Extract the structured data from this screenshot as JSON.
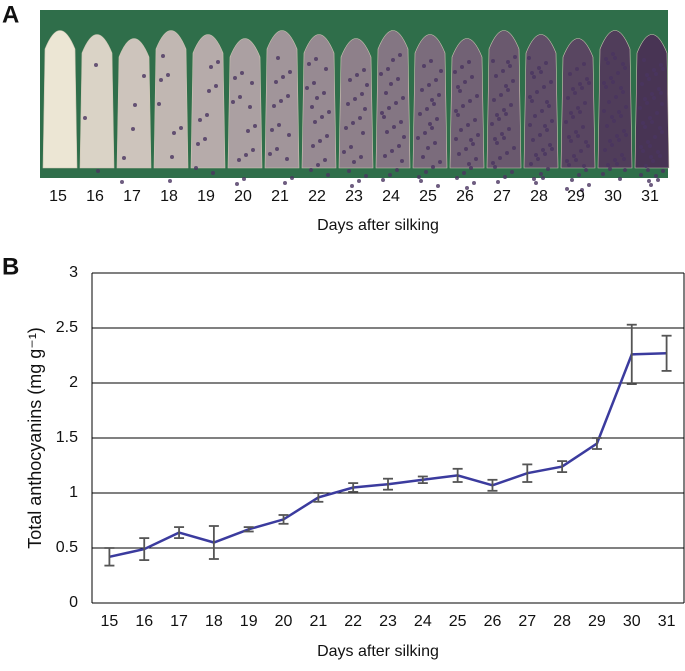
{
  "panel_a": {
    "label": "A",
    "categories": [
      "15",
      "16",
      "17",
      "18",
      "19",
      "20",
      "21",
      "22",
      "23",
      "24",
      "25",
      "26",
      "27",
      "28",
      "29",
      "30",
      "31"
    ],
    "xlabel": "Days after silking"
  },
  "chart_data": {
    "type": "line",
    "label": "B",
    "xlabel": "Days after silking",
    "ylabel": "Total anthocyanins (mg g⁻¹)",
    "x": [
      15,
      16,
      17,
      18,
      19,
      20,
      21,
      22,
      23,
      24,
      25,
      26,
      27,
      28,
      29,
      30,
      31
    ],
    "xlim": [
      14.5,
      31.5
    ],
    "values": [
      0.42,
      0.49,
      0.64,
      0.55,
      0.67,
      0.76,
      0.96,
      1.05,
      1.08,
      1.12,
      1.16,
      1.07,
      1.18,
      1.24,
      1.45,
      2.26,
      2.27
    ],
    "errors": [
      0.08,
      0.1,
      0.05,
      0.15,
      0.02,
      0.04,
      0.04,
      0.04,
      0.05,
      0.03,
      0.06,
      0.05,
      0.08,
      0.05,
      0.05,
      0.27,
      0.16
    ],
    "color": "#3b3b9e",
    "error_color": "#555555",
    "ylim": [
      0,
      3
    ],
    "yticks": [
      0,
      0.5,
      1,
      1.5,
      2,
      2.5,
      3
    ],
    "grid": true
  }
}
